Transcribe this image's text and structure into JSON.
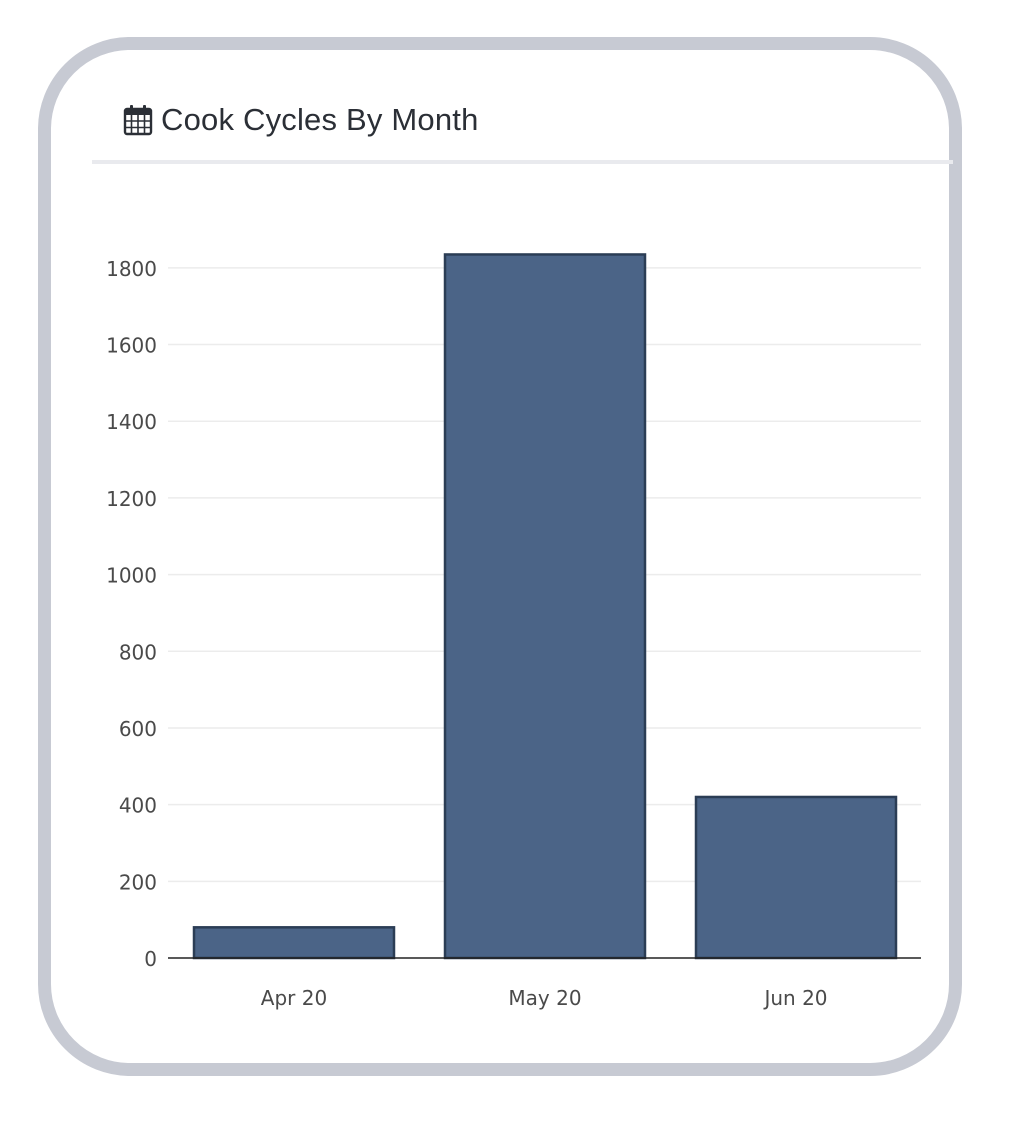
{
  "card": {
    "title": "Cook Cycles By Month",
    "icon": "calendar-icon"
  },
  "colors": {
    "bar_fill": "#4b6487",
    "bar_stroke": "#2b3d55",
    "gridline": "#ececec",
    "axis_text": "#4a4a4a",
    "card_border": "#c7cad3",
    "title_text": "#2b2f36"
  },
  "chart_data": {
    "type": "bar",
    "title": "",
    "xlabel": "",
    "ylabel": "",
    "categories": [
      "Apr 20",
      "May 20",
      "Jun 20"
    ],
    "values": [
      80,
      1835,
      420
    ],
    "ylim": [
      0,
      1800
    ],
    "yticks": [
      0,
      200,
      400,
      600,
      800,
      1000,
      1200,
      1400,
      1600,
      1800
    ],
    "grid": true,
    "legend": "none"
  }
}
